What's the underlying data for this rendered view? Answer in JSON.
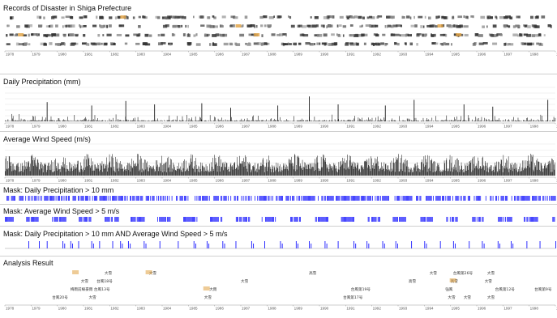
{
  "chart_data": [
    {
      "type": "timeline",
      "title": "Records of Disaster in Shiga Prefecture",
      "x_ticks": [
        "1978",
        "1979",
        "1980",
        "1981",
        "1982",
        "1983",
        "1984",
        "1985",
        "1986",
        "1987",
        "1988",
        "1989",
        "1990",
        "1991",
        "1992",
        "1993",
        "1994",
        "1995",
        "1996",
        "1997",
        "1998",
        "1999"
      ],
      "rows": 4
    },
    {
      "type": "bar",
      "title": "Daily Precipitation (mm)",
      "xlim": [
        "1978",
        "1999"
      ],
      "ylim": [
        0,
        150
      ],
      "x_ticks": [
        "1978",
        "1979",
        "1980",
        "1981",
        "1982",
        "1983",
        "1984",
        "1985",
        "1986",
        "1987",
        "1988",
        "1989",
        "1990",
        "1991",
        "1992",
        "1993",
        "1994",
        "1995",
        "1996",
        "1997",
        "1998",
        "1999"
      ],
      "peaks": [
        {
          "year": 1979.6,
          "value": 85
        },
        {
          "year": 1981.3,
          "value": 70
        },
        {
          "year": 1982.6,
          "value": 90
        },
        {
          "year": 1983.7,
          "value": 75
        },
        {
          "year": 1985.5,
          "value": 80
        },
        {
          "year": 1986.6,
          "value": 60
        },
        {
          "year": 1988.4,
          "value": 70
        },
        {
          "year": 1989.6,
          "value": 110
        },
        {
          "year": 1990.7,
          "value": 75
        },
        {
          "year": 1992.5,
          "value": 70
        },
        {
          "year": 1993.6,
          "value": 95
        },
        {
          "year": 1995.5,
          "value": 75
        },
        {
          "year": 1996.6,
          "value": 65
        },
        {
          "year": 1998.7,
          "value": 95
        }
      ]
    },
    {
      "type": "bar",
      "title": "Average Wind Speed (m/s)",
      "xlim": [
        "1978",
        "1999"
      ],
      "ylim": [
        0,
        10
      ],
      "typical_range": [
        1,
        6
      ],
      "x_ticks": [
        "1978",
        "1979",
        "1980",
        "1981",
        "1982",
        "1983",
        "1984",
        "1985",
        "1986",
        "1987",
        "1988",
        "1989",
        "1990",
        "1991",
        "1992",
        "1993",
        "1994",
        "1995",
        "1996",
        "1997",
        "1998",
        "1999"
      ]
    },
    {
      "type": "mask",
      "title": "Mask: Daily Precipitation > 10 mm",
      "threshold": 10,
      "color": "#1a1aff"
    },
    {
      "type": "mask",
      "title": "Mask: Average Wind Speed > 5 m/s",
      "threshold": 5,
      "color": "#1a1aff"
    },
    {
      "type": "mask",
      "title": "Mask: Daily Precipitation > 10 mm AND Average Wind Speed > 5 m/s",
      "color": "#1a1aff",
      "events": [
        1978.9,
        1979.3,
        1979.6,
        1980.2,
        1980.5,
        1980.8,
        1981.3,
        1981.6,
        1982.1,
        1982.4,
        1982.7,
        1983.3,
        1983.9,
        1984.6,
        1985.2,
        1985.7,
        1986.3,
        1986.8,
        1987.4,
        1987.9,
        1988.5,
        1989.1,
        1989.6,
        1990.2,
        1990.7,
        1991.3,
        1991.8,
        1992.4,
        1992.9,
        1993.5,
        1994.0,
        1994.6,
        1995.1,
        1995.7,
        1996.2,
        1996.8,
        1997.3,
        1997.9,
        1998.4,
        1999.0
      ]
    },
    {
      "type": "timeline",
      "title": "Analysis Result",
      "x_ticks": [
        "1978",
        "1979",
        "1980",
        "1981",
        "1982",
        "1983",
        "1984",
        "1985",
        "1986",
        "1987",
        "1988",
        "1989",
        "1990",
        "1991",
        "1992",
        "1993",
        "1994",
        "1995",
        "1996",
        "1997",
        "1998",
        "1999"
      ],
      "events": [
        {
          "label": "台風20号",
          "year": 1979.8,
          "row": 3
        },
        {
          "label": "大雪",
          "year": 1980.9,
          "row": 1
        },
        {
          "label": "梅雨前線豪雨",
          "year": 1980.5,
          "row": 2
        },
        {
          "label": "大雪",
          "year": 1981.8,
          "row": 0
        },
        {
          "label": "台風18号",
          "year": 1981.5,
          "row": 1
        },
        {
          "label": "台風13号",
          "year": 1981.4,
          "row": 2
        },
        {
          "label": "大雪",
          "year": 1981.2,
          "row": 3
        },
        {
          "label": "大雪",
          "year": 1983.5,
          "row": 0
        },
        {
          "label": "大雨",
          "year": 1985.8,
          "row": 2
        },
        {
          "label": "大雪",
          "year": 1985.6,
          "row": 3
        },
        {
          "label": "大雪",
          "year": 1987.0,
          "row": 1
        },
        {
          "label": "高雪",
          "year": 1989.6,
          "row": 0
        },
        {
          "label": "台風第19号",
          "year": 1991.2,
          "row": 2
        },
        {
          "label": "台風第17号",
          "year": 1990.9,
          "row": 3
        },
        {
          "label": "高雪",
          "year": 1993.4,
          "row": 1
        },
        {
          "label": "大雪",
          "year": 1994.2,
          "row": 0
        },
        {
          "label": "台風第26号",
          "year": 1995.1,
          "row": 0
        },
        {
          "label": "大雪",
          "year": 1996.4,
          "row": 0
        },
        {
          "label": "高雪",
          "year": 1995.0,
          "row": 1
        },
        {
          "label": "大雪",
          "year": 1996.3,
          "row": 1
        },
        {
          "label": "強風",
          "year": 1994.8,
          "row": 2
        },
        {
          "label": "台風第12号",
          "year": 1996.7,
          "row": 2
        },
        {
          "label": "台風第9号",
          "year": 1998.2,
          "row": 2
        },
        {
          "label": "大雪",
          "year": 1994.9,
          "row": 3
        },
        {
          "label": "大雪",
          "year": 1995.5,
          "row": 3
        },
        {
          "label": "大雪",
          "year": 1996.4,
          "row": 3
        }
      ]
    }
  ]
}
